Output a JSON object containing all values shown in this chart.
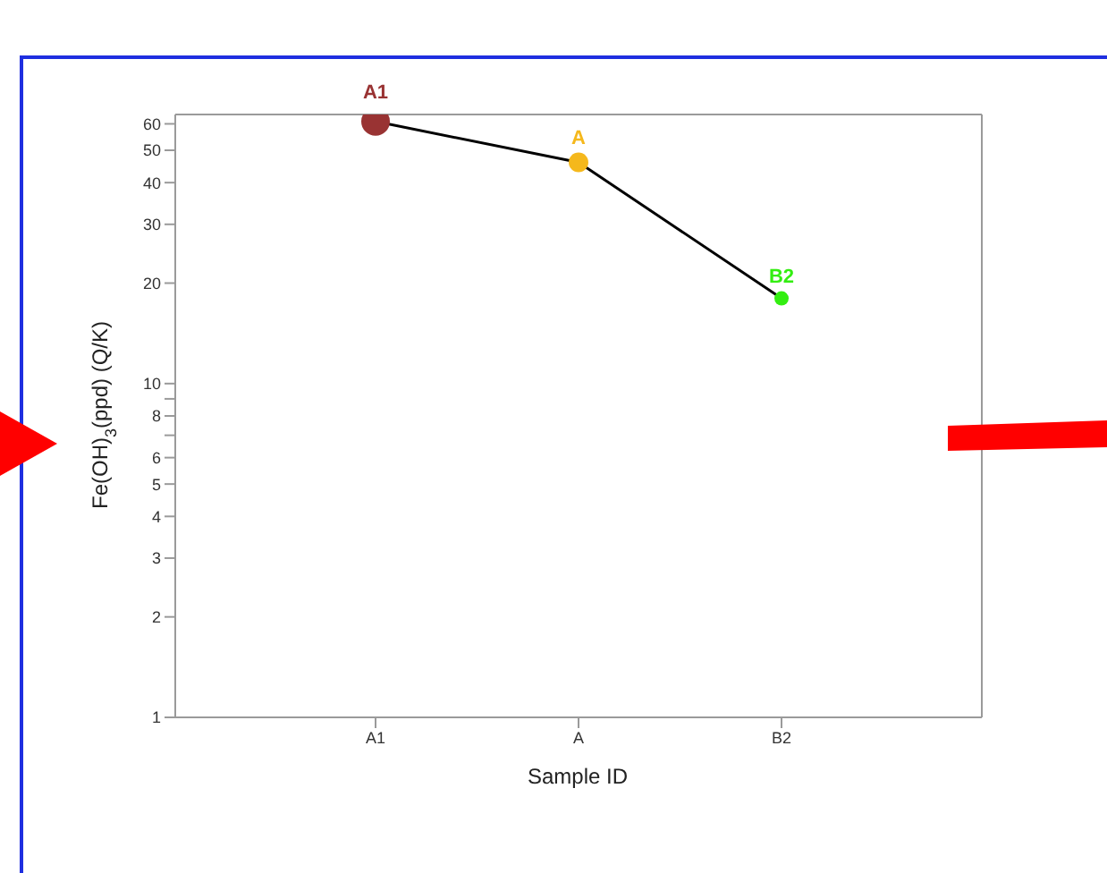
{
  "chart_data": {
    "type": "line",
    "xlabel": "Sample ID",
    "ylabel": "Fe(OH)$_{3}$(ppd) (Q/K)",
    "categories": [
      "A1",
      "A",
      "B2"
    ],
    "log": true,
    "ylim": [
      1,
      64
    ],
    "yticks": [
      1,
      2,
      3,
      4,
      5,
      6,
      {
        "value": 7,
        "label": null
      },
      8,
      {
        "value": 9,
        "label": null
      },
      10,
      20,
      30,
      40,
      50,
      60
    ],
    "series": [
      {
        "type": "line",
        "color": "#000000",
        "marker": "none",
        "values": [
          61,
          46,
          18
        ]
      },
      {
        "type": "bubble",
        "colors": [
          "#993333",
          "#f5b81c",
          "#33ee11"
        ],
        "sizes": [
          1,
          0.47,
          0.25
        ],
        "values": [
          61,
          46,
          18
        ],
        "value_labels": [
          "A1",
          "A",
          "B2"
        ]
      }
    ]
  }
}
